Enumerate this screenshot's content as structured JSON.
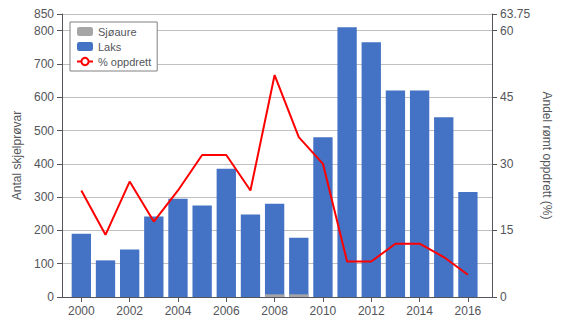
{
  "chart_data": {
    "type": "bar",
    "x": [
      2000,
      2001,
      2002,
      2003,
      2004,
      2005,
      2006,
      2007,
      2008,
      2009,
      2010,
      2011,
      2012,
      2013,
      2014,
      2015,
      2016
    ],
    "xlim": [
      1999.2,
      2017.0
    ],
    "xticks": [
      2000,
      2002,
      2004,
      2006,
      2008,
      2010,
      2012,
      2014,
      2016
    ],
    "ylabel": "Antal skjelprøvar",
    "y2label": "Andel rømt oppdrett (%)",
    "ylim": [
      0,
      850
    ],
    "yticks": [
      0,
      100,
      200,
      300,
      400,
      500,
      600,
      700,
      800
    ],
    "y2lim": [
      0,
      63.75
    ],
    "y2ticks": [
      0,
      15,
      30,
      45,
      60
    ],
    "stacked": true,
    "grid": true,
    "legend": "upper left",
    "series": [
      {
        "name": "Laks",
        "color": "#4472c4",
        "values": [
          190,
          110,
          143,
          242,
          295,
          275,
          385,
          248,
          280,
          178,
          480,
          810,
          765,
          620,
          620,
          540,
          315
        ]
      },
      {
        "name": "Sjøaure",
        "color": "#a6a6a6",
        "values": [
          0,
          0,
          0,
          0,
          0,
          0,
          0,
          0,
          8,
          8,
          0,
          0,
          0,
          0,
          0,
          0,
          0
        ]
      },
      {
        "name": "% oppdrett",
        "type": "line",
        "axis": "y2",
        "color": "#ff0000",
        "values": [
          24,
          14,
          26,
          17,
          24,
          32,
          32,
          24,
          50,
          36,
          30,
          8,
          8,
          12,
          12,
          9,
          5
        ]
      }
    ]
  }
}
